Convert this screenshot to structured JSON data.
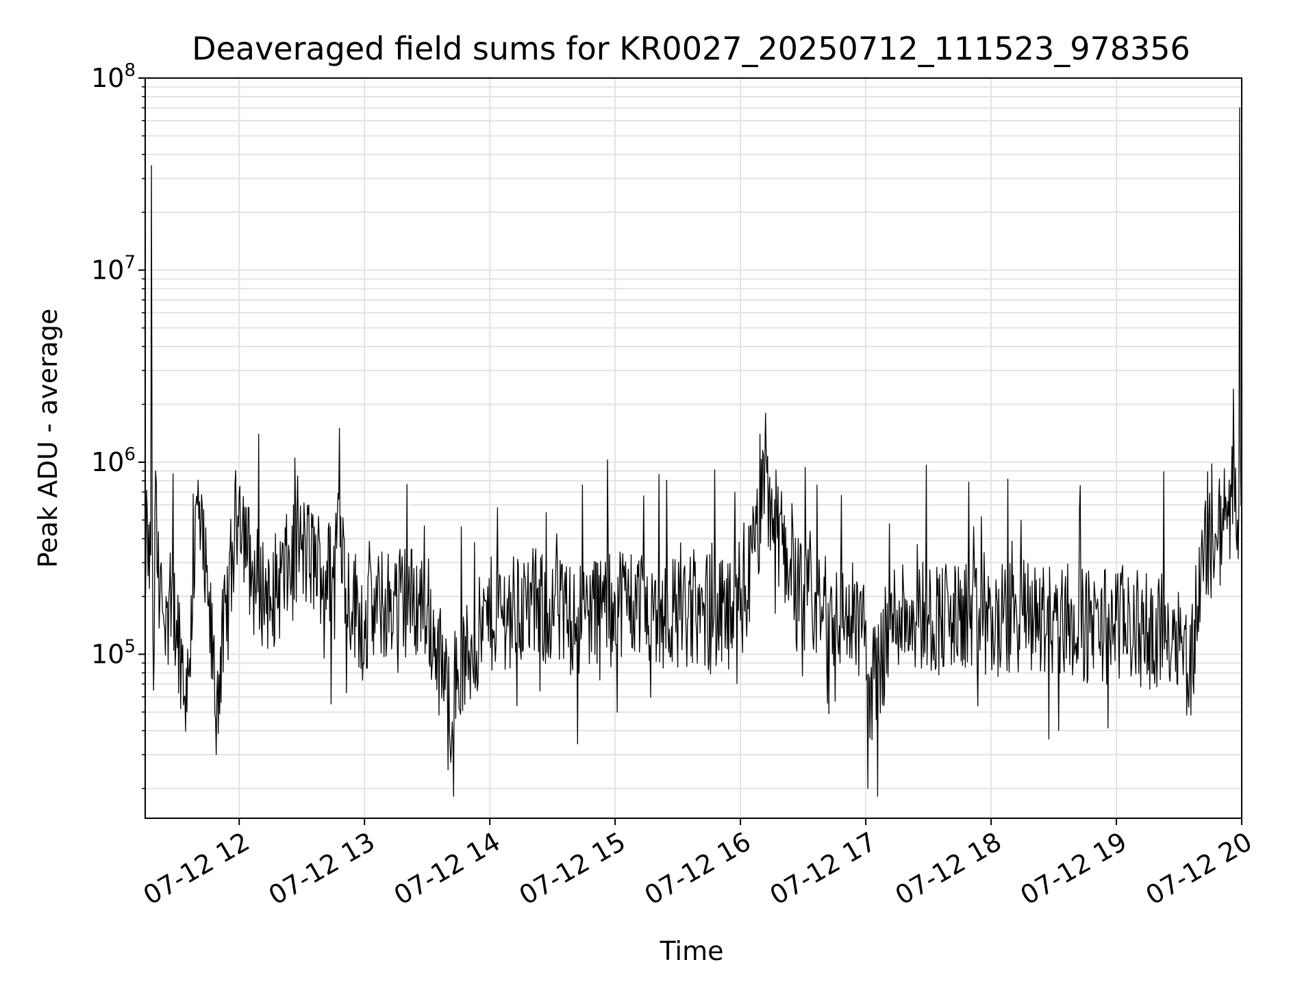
{
  "chart_data": {
    "type": "line",
    "title": "Deaveraged field sums for KR0027_20250712_111523_978356",
    "xlabel": "Time",
    "ylabel": "Peak ADU - average",
    "yscale": "log",
    "ylim": [
      14000,
      100000000
    ],
    "xlim": [
      "2025-07-12 11:15",
      "2025-07-12 20:00"
    ],
    "grid": true,
    "line_color": "#000000",
    "x_ticks": [
      "07-12 12",
      "07-12 13",
      "07-12 14",
      "07-12 15",
      "07-12 16",
      "07-12 17",
      "07-12 18",
      "07-12 19",
      "07-12 20"
    ],
    "y_ticks": [
      {
        "base": "10",
        "exp": "5"
      },
      {
        "base": "10",
        "exp": "6"
      },
      {
        "base": "10",
        "exp": "7"
      },
      {
        "base": "10",
        "exp": "8"
      }
    ],
    "series": [
      {
        "x": [
          "2025-07-12 11:15",
          "2025-07-12 11:16",
          "2025-07-12 11:17",
          "2025-07-12 11:18",
          "2025-07-12 11:19",
          "2025-07-12 11:20",
          "2025-07-12 11:21",
          "2025-07-12 11:22",
          "2025-07-12 11:25",
          "2025-07-12 11:30",
          "2025-07-12 11:35",
          "2025-07-12 11:40",
          "2025-07-12 11:45",
          "2025-07-12 11:49",
          "2025-07-12 11:55",
          "2025-07-12 12:00",
          "2025-07-12 12:06",
          "2025-07-12 12:15",
          "2025-07-12 12:30",
          "2025-07-12 12:45",
          "2025-07-12 12:48",
          "2025-07-12 12:51",
          "2025-07-12 13:00",
          "2025-07-12 13:15",
          "2025-07-12 13:30",
          "2025-07-12 13:40",
          "2025-07-12 14:00",
          "2025-07-12 14:20",
          "2025-07-12 14:40",
          "2025-07-12 15:00",
          "2025-07-12 15:20",
          "2025-07-12 15:40",
          "2025-07-12 16:00",
          "2025-07-12 16:12",
          "2025-07-12 16:30",
          "2025-07-12 16:45",
          "2025-07-12 17:00",
          "2025-07-12 17:01",
          "2025-07-12 17:15",
          "2025-07-12 17:30",
          "2025-07-12 17:45",
          "2025-07-12 18:00",
          "2025-07-12 18:15",
          "2025-07-12 18:30",
          "2025-07-12 18:45",
          "2025-07-12 19:00",
          "2025-07-12 19:15",
          "2025-07-12 19:30",
          "2025-07-12 19:35",
          "2025-07-12 19:42",
          "2025-07-12 19:48",
          "2025-07-12 19:52",
          "2025-07-12 19:56",
          "2025-07-12 19:58",
          "2025-07-12 19:59",
          "2025-07-12 20:00"
        ],
        "y": [
          150000,
          550000,
          220000,
          35000000,
          65000,
          900000,
          250000,
          180000,
          200000,
          150000,
          50000,
          600000,
          180000,
          30000,
          200000,
          700000,
          250000,
          200000,
          350000,
          250000,
          1500000,
          220000,
          150000,
          200000,
          180000,
          25000,
          160000,
          180000,
          150000,
          200000,
          170000,
          160000,
          150000,
          1800000,
          180000,
          160000,
          150000,
          20000,
          170000,
          160000,
          150000,
          140000,
          160000,
          150000,
          140000,
          150000,
          130000,
          140000,
          80000,
          350000,
          400000,
          500000,
          2400000,
          500000,
          70000000,
          600000
        ]
      }
    ]
  }
}
